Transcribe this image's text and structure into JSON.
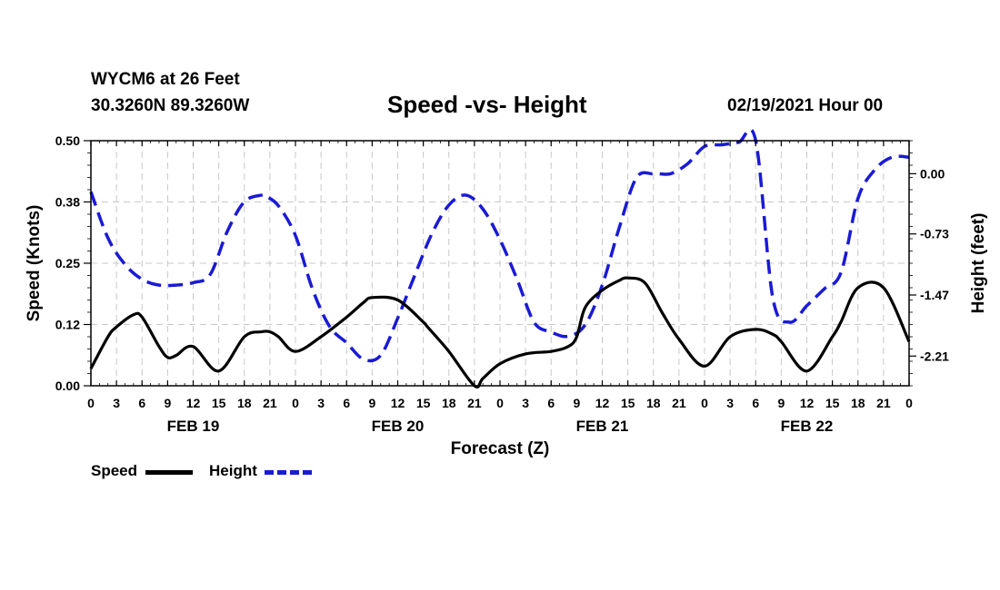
{
  "header": {
    "station": "WYCM6 at 26 Feet",
    "coords": "30.3260N 89.3260W",
    "title": "Speed -vs- Height",
    "datetime": "02/19/2021 Hour 00"
  },
  "legend": {
    "speed_label": "Speed",
    "height_label": "Height"
  },
  "colors": {
    "speed": "#000000",
    "height": "#1a1ad6",
    "grid": "#c8c8c8"
  },
  "chart_data": {
    "type": "line",
    "title": "Speed -vs- Height",
    "xlabel": "Forecast (Z)",
    "ylabel": "Speed (Knots)",
    "y2label": "Height (feet)",
    "x_range": [
      0,
      96
    ],
    "ylim": [
      0,
      0.5
    ],
    "y2lim": [
      -2.57,
      0.4
    ],
    "x_ticks": [
      0,
      3,
      6,
      9,
      12,
      15,
      18,
      21,
      24,
      27,
      30,
      33,
      36,
      39,
      42,
      45,
      48,
      51,
      54,
      57,
      60,
      63,
      66,
      69,
      72,
      75,
      78,
      81,
      84,
      87,
      90,
      93,
      96
    ],
    "x_tick_labels": [
      "0",
      "3",
      "6",
      "9",
      "12",
      "15",
      "18",
      "21",
      "0",
      "3",
      "6",
      "9",
      "12",
      "15",
      "18",
      "21",
      "0",
      "3",
      "6",
      "9",
      "12",
      "15",
      "18",
      "21",
      "0",
      "3",
      "6",
      "9",
      "12",
      "15",
      "18",
      "21",
      "0"
    ],
    "date_labels": [
      {
        "x": 12,
        "label": "FEB 19"
      },
      {
        "x": 36,
        "label": "FEB 20"
      },
      {
        "x": 60,
        "label": "FEB 21"
      },
      {
        "x": 84,
        "label": "FEB 22"
      }
    ],
    "y_ticks": [
      0.0,
      0.125,
      0.25,
      0.375,
      0.5
    ],
    "y_tick_labels": [
      "0.00",
      "0.12",
      "0.25",
      "0.38",
      "0.50"
    ],
    "y2_ticks": [
      0.0,
      -0.73,
      -1.47,
      -2.21
    ],
    "y2_tick_labels": [
      "0.00",
      "-0.73",
      "-1.47",
      "-2.21"
    ],
    "grid": true,
    "series": [
      {
        "name": "Speed",
        "axis": "left",
        "style": "solid",
        "x": [
          0,
          2,
          3,
          5,
          6,
          8,
          9,
          10,
          12,
          15,
          18,
          20,
          21,
          22,
          24,
          27,
          30,
          32,
          33,
          36,
          39,
          39.5,
          42,
          45,
          46,
          48,
          51,
          54,
          56,
          57,
          58,
          60,
          62,
          63,
          65,
          67,
          69,
          72,
          75,
          78,
          80,
          81,
          84,
          87,
          88,
          90,
          93,
          96
        ],
        "y": [
          0.035,
          0.1,
          0.12,
          0.145,
          0.14,
          0.08,
          0.058,
          0.062,
          0.08,
          0.03,
          0.1,
          0.11,
          0.11,
          0.1,
          0.07,
          0.1,
          0.14,
          0.17,
          0.18,
          0.175,
          0.13,
          0.12,
          0.07,
          0.0,
          0.015,
          0.045,
          0.065,
          0.07,
          0.08,
          0.1,
          0.16,
          0.195,
          0.215,
          0.22,
          0.21,
          0.15,
          0.095,
          0.04,
          0.1,
          0.115,
          0.105,
          0.09,
          0.03,
          0.1,
          0.13,
          0.2,
          0.2,
          0.09
        ]
      },
      {
        "name": "Height",
        "axis": "right",
        "style": "dashed",
        "x": [
          0,
          2,
          4,
          6,
          8,
          10,
          12,
          14,
          16,
          18,
          20,
          20.5,
          22,
          24,
          26,
          28,
          30,
          32,
          34,
          36,
          38,
          40,
          42,
          44,
          46,
          48,
          50,
          52,
          54,
          56,
          58,
          60,
          62,
          64,
          66,
          68,
          70,
          72,
          74,
          76,
          78,
          80,
          82,
          84,
          86,
          88,
          90,
          92,
          94,
          96
        ],
        "y": [
          -0.22,
          -0.78,
          -1.1,
          -1.28,
          -1.35,
          -1.35,
          -1.32,
          -1.22,
          -0.7,
          -0.34,
          -0.26,
          -0.27,
          -0.39,
          -0.75,
          -1.4,
          -1.85,
          -2.05,
          -2.25,
          -2.2,
          -1.75,
          -1.23,
          -0.73,
          -0.38,
          -0.26,
          -0.43,
          -0.8,
          -1.28,
          -1.8,
          -1.92,
          -1.97,
          -1.83,
          -1.35,
          -0.65,
          -0.05,
          0.0,
          0.0,
          0.12,
          0.33,
          0.35,
          0.38,
          0.4,
          -1.5,
          -1.8,
          -1.6,
          -1.4,
          -1.2,
          -0.3,
          0.05,
          0.2,
          0.2
        ]
      }
    ]
  }
}
